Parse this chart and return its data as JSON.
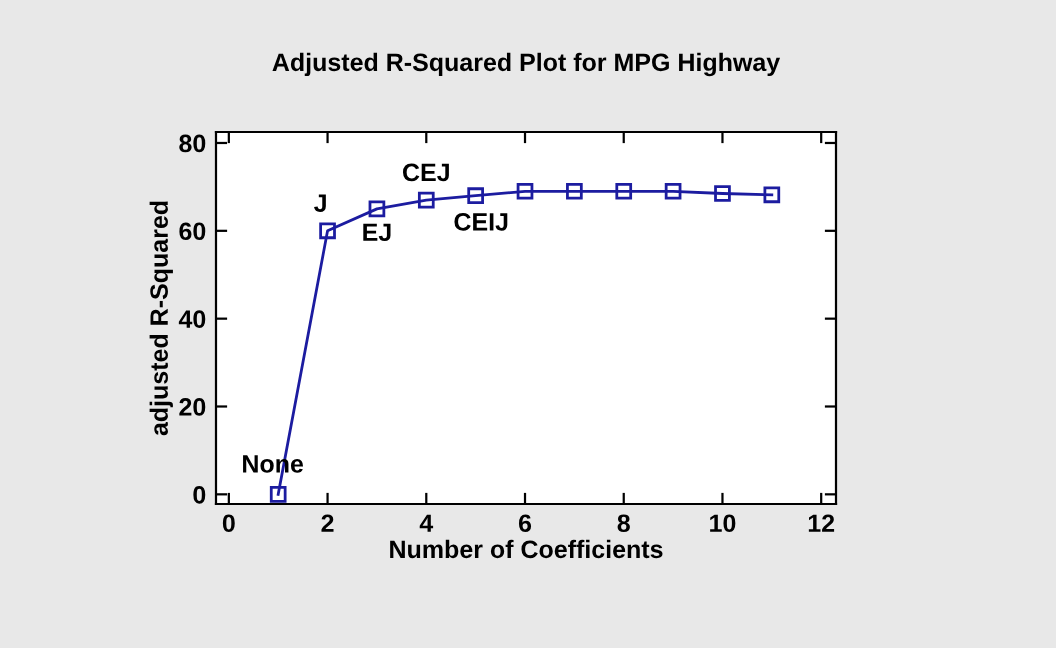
{
  "chart_data": {
    "type": "line",
    "title": "Adjusted R-Squared Plot for MPG Highway",
    "xlabel": "Number of Coefficients",
    "ylabel": "adjusted R-Squared",
    "x": [
      1,
      2,
      3,
      4,
      5,
      6,
      7,
      8,
      9,
      10,
      11
    ],
    "series": [
      {
        "color": "#1c1ca0",
        "values": [
          0,
          60,
          65,
          67,
          68,
          69,
          69,
          69,
          69,
          68.5,
          68.2
        ]
      }
    ],
    "xlim": [
      -0.26,
      12.3
    ],
    "ylim": [
      -2.2,
      82.5
    ],
    "xticks": [
      0,
      2,
      4,
      6,
      8,
      10,
      12
    ],
    "yticks": [
      0,
      20,
      40,
      60,
      80
    ],
    "marker": "square",
    "line_style": "solid",
    "grid": false,
    "legend": false,
    "annotations": [
      {
        "text": "None",
        "x": 1,
        "y": 0
      },
      {
        "text": "J",
        "x": 2,
        "y": 60
      },
      {
        "text": "EJ",
        "x": 3,
        "y": 65
      },
      {
        "text": "CEJ",
        "x": 4,
        "y": 67
      },
      {
        "text": "CEIJ",
        "x": 5,
        "y": 68
      }
    ]
  }
}
